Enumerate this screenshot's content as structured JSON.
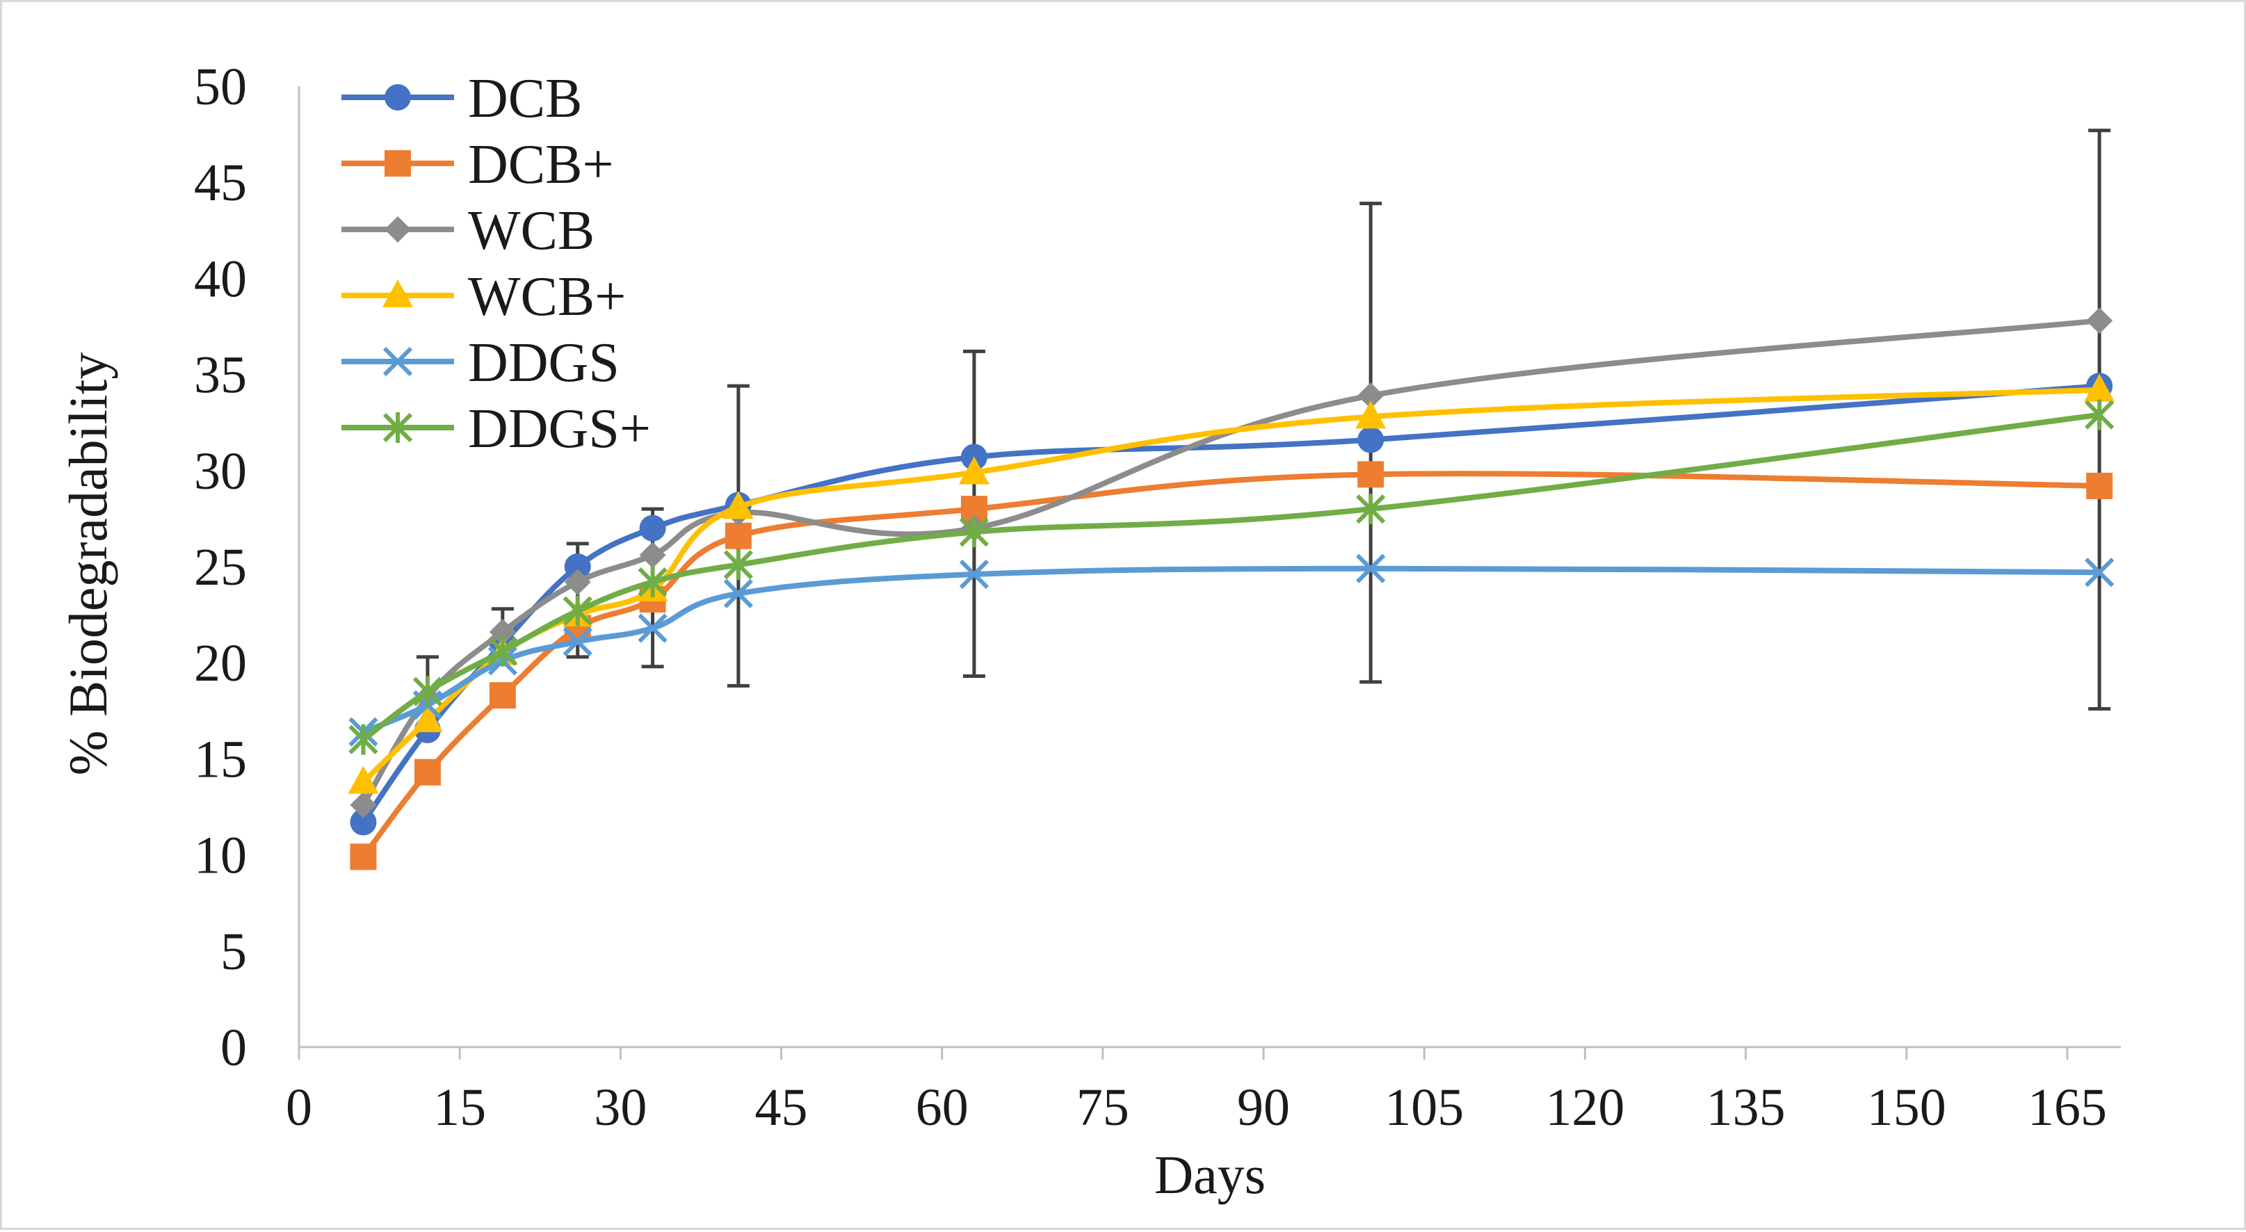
{
  "chart_data": {
    "type": "line",
    "title": "",
    "xlabel": "Days",
    "ylabel": "% Biodegradability",
    "xlim": [
      0,
      170
    ],
    "ylim": [
      0,
      50
    ],
    "xticks": [
      0,
      15,
      30,
      45,
      60,
      75,
      90,
      105,
      120,
      135,
      150,
      165
    ],
    "yticks": [
      0,
      5,
      10,
      15,
      20,
      25,
      30,
      35,
      40,
      45,
      50
    ],
    "legend_position": "top-left",
    "grid": false,
    "x": [
      6,
      12,
      19,
      26,
      33,
      41,
      63,
      100,
      168
    ],
    "series": [
      {
        "name": "DCB",
        "color": "#4472C4",
        "marker": "circle",
        "values": [
          11.7,
          16.5,
          21.0,
          25.0,
          27.0,
          28.2,
          30.7,
          31.6,
          34.4
        ]
      },
      {
        "name": "DCB+",
        "color": "#ED7D31",
        "marker": "square",
        "values": [
          9.9,
          14.3,
          18.3,
          21.8,
          23.3,
          26.6,
          28.0,
          29.8,
          29.2
        ]
      },
      {
        "name": "WCB",
        "color": "#8C8C8C",
        "marker": "diamond",
        "values": [
          12.6,
          18.2,
          21.6,
          24.2,
          25.6,
          27.8,
          27.0,
          33.9,
          37.8
        ]
      },
      {
        "name": "WCB+",
        "color": "#FFC000",
        "marker": "triangle",
        "values": [
          13.8,
          17.0,
          20.5,
          22.5,
          23.8,
          28.1,
          29.9,
          32.8,
          34.2
        ]
      },
      {
        "name": "DDGS",
        "color": "#5B9BD5",
        "marker": "x",
        "values": [
          16.4,
          17.8,
          20.1,
          21.1,
          21.8,
          23.6,
          24.6,
          24.9,
          24.7
        ]
      },
      {
        "name": "DDGS+",
        "color": "#70AD47",
        "marker": "star",
        "values": [
          16.0,
          18.5,
          20.6,
          22.7,
          24.2,
          25.1,
          26.8,
          28.0,
          32.9
        ]
      }
    ],
    "error_bars": [
      {
        "x": 12,
        "low": 17.5,
        "high": 20.3
      },
      {
        "x": 19,
        "low": 20.3,
        "high": 22.8
      },
      {
        "x": 26,
        "low": 20.3,
        "high": 26.2
      },
      {
        "x": 33,
        "low": 19.8,
        "high": 28.0
      },
      {
        "x": 41,
        "low": 18.8,
        "high": 34.4
      },
      {
        "x": 63,
        "low": 19.3,
        "high": 36.2
      },
      {
        "x": 100,
        "low": 19.0,
        "high": 43.9
      },
      {
        "x": 168,
        "low": 17.6,
        "high": 47.7
      }
    ]
  }
}
